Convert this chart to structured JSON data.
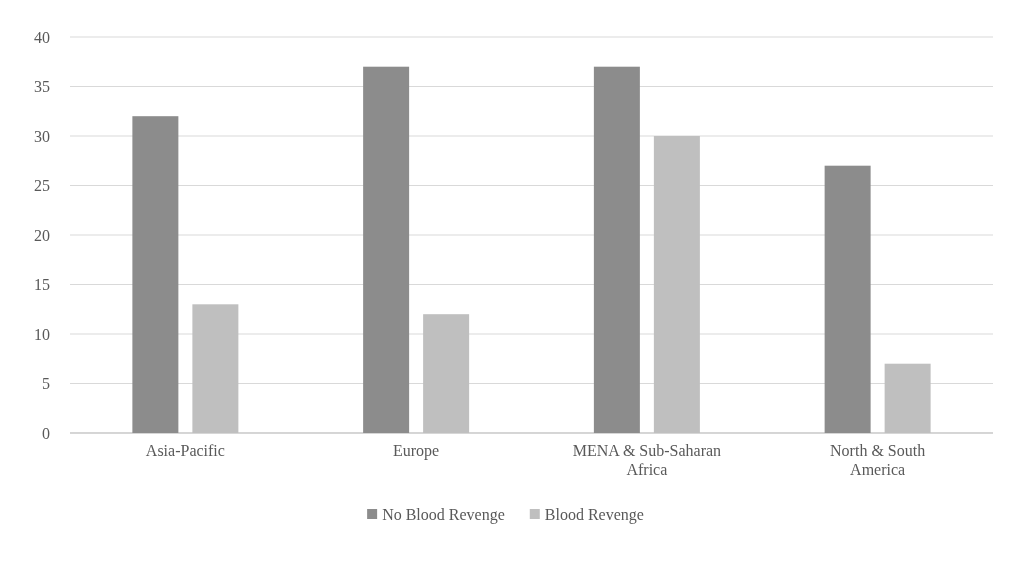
{
  "chart_data": {
    "type": "bar",
    "categories": [
      "Asia-Pacific",
      "Europe",
      "MENA & Sub-Saharan Africa",
      "North & South America"
    ],
    "series": [
      {
        "name": "No Blood Revenge",
        "color": "#8c8c8c",
        "values": [
          32,
          37,
          37,
          27
        ]
      },
      {
        "name": "Blood Revenge",
        "color": "#bfbfbf",
        "values": [
          13,
          12,
          30,
          7
        ]
      }
    ],
    "ylim": [
      0,
      40
    ],
    "yticks": [
      0,
      5,
      10,
      15,
      20,
      25,
      30,
      35,
      40
    ],
    "grid": "y",
    "legend": "bottom"
  }
}
